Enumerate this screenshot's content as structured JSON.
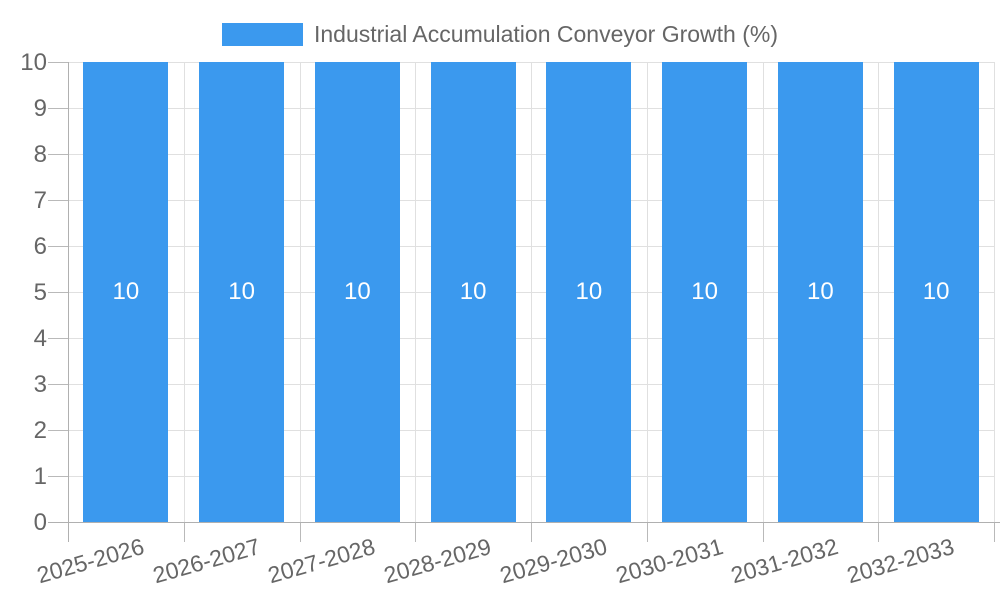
{
  "chart_data": {
    "type": "bar",
    "title": "Industrial Accumulation Conveyor Growth (%)",
    "legend_position": "top-center",
    "categories": [
      "2025-2026",
      "2026-2027",
      "2027-2028",
      "2028-2029",
      "2029-2030",
      "2030-2031",
      "2031-2032",
      "2032-2033"
    ],
    "values": [
      10,
      10,
      10,
      10,
      10,
      10,
      10,
      10
    ],
    "bar_labels": [
      "10",
      "10",
      "10",
      "10",
      "10",
      "10",
      "10",
      "10"
    ],
    "xlabel": "",
    "ylabel": "",
    "ylim": [
      0,
      10
    ],
    "yticks": [
      0,
      1,
      2,
      3,
      4,
      5,
      6,
      7,
      8,
      9,
      10
    ],
    "grid": true,
    "x_label_rotation_deg": -16,
    "colors": {
      "bar": "#3b99ee",
      "grid": "#e0e0e0",
      "tick": "#b9b9b9",
      "axis": "#b0b0b0",
      "label_text": "#666666",
      "bar_label_text": "#ffffff",
      "background": "#ffffff"
    }
  }
}
